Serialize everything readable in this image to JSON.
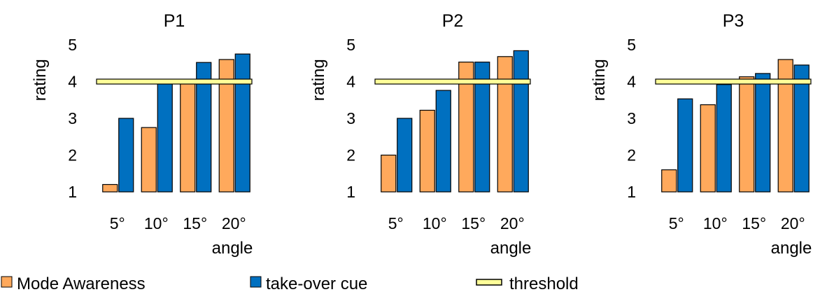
{
  "chart_data": [
    {
      "type": "bar",
      "title": "P1",
      "ylabel": "rating",
      "xlabel": "angle",
      "categories": [
        "5°",
        "10°",
        "15°",
        "20°"
      ],
      "ylim": [
        1,
        5
      ],
      "yticks": [
        "1",
        "2",
        "3",
        "4",
        "5"
      ],
      "threshold": 4,
      "series": [
        {
          "name": "Mode Awareness",
          "values": [
            1.2,
            2.75,
            3.95,
            4.6
          ]
        },
        {
          "name": "take-over cue",
          "values": [
            3.0,
            3.95,
            4.52,
            4.75
          ]
        }
      ]
    },
    {
      "type": "bar",
      "title": "P2",
      "ylabel": "rating",
      "xlabel": "angle",
      "categories": [
        "5°",
        "10°",
        "15°",
        "20°"
      ],
      "ylim": [
        1,
        5
      ],
      "yticks": [
        "1",
        "2",
        "3",
        "4",
        "5"
      ],
      "threshold": 4,
      "series": [
        {
          "name": "Mode Awareness",
          "values": [
            2.0,
            3.22,
            4.53,
            4.68
          ]
        },
        {
          "name": "take-over cue",
          "values": [
            3.0,
            3.76,
            4.53,
            4.84
          ]
        }
      ]
    },
    {
      "type": "bar",
      "title": "P3",
      "ylabel": "rating",
      "xlabel": "angle",
      "categories": [
        "5°",
        "10°",
        "15°",
        "20°"
      ],
      "ylim": [
        1,
        5
      ],
      "yticks": [
        "1",
        "2",
        "3",
        "4",
        "5"
      ],
      "threshold": 4,
      "series": [
        {
          "name": "Mode Awareness",
          "values": [
            1.6,
            3.37,
            4.13,
            4.6
          ]
        },
        {
          "name": "take-over cue",
          "values": [
            3.53,
            3.92,
            4.22,
            4.45
          ]
        }
      ]
    }
  ],
  "legend": {
    "placement": "bottom",
    "items": [
      {
        "label": "Mode Awareness",
        "color": "#FFA95C"
      },
      {
        "label": "take-over cue",
        "color": "#0070C0"
      },
      {
        "label": "threshold",
        "color": "#FFFF99"
      }
    ]
  },
  "colors": {
    "mode_awareness": "#FFA95C",
    "takeover_cue": "#0070C0",
    "threshold": "#FFFF99",
    "outline": "#000000"
  }
}
